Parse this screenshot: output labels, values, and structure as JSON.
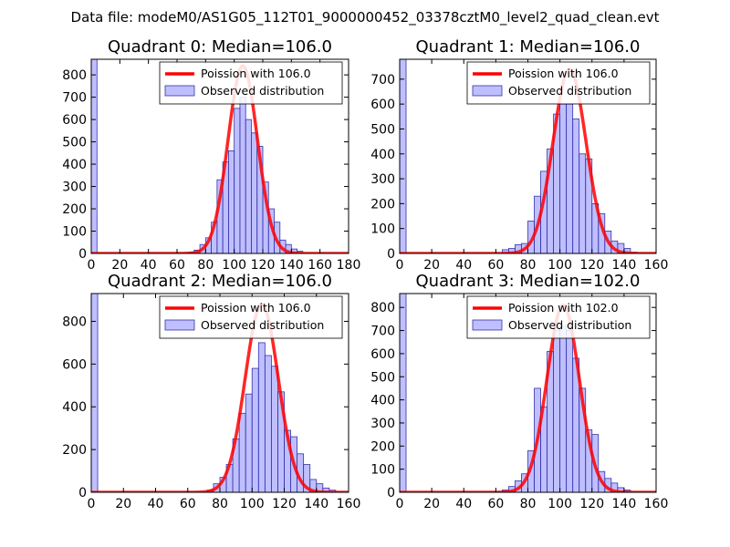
{
  "figure_title": "Data file: modeM0/AS1G05_112T01_9000000452_03378cztM0_level2_quad_clean.evt",
  "colors": {
    "hist_fill": "#7f7fff",
    "hist_edge": "#3333aa",
    "curve": "#ff0000",
    "axes": "#000000"
  },
  "chart_data": [
    {
      "type": "bar",
      "title": "Quadrant 0: Median=106.0",
      "median": 106.0,
      "legend": {
        "curve_label": "Poission with 106.0",
        "hist_label": "Observed distribution",
        "placement": "top-right"
      },
      "xlim": [
        0,
        180
      ],
      "ylim": [
        0,
        870
      ],
      "xticks": [
        0,
        20,
        40,
        60,
        80,
        100,
        120,
        140,
        160,
        180
      ],
      "yticks": [
        0,
        100,
        200,
        300,
        400,
        500,
        600,
        700,
        800
      ],
      "bin_width": 4,
      "bins": [
        {
          "x": 0,
          "count": 870
        },
        {
          "x": 68,
          "count": 5
        },
        {
          "x": 72,
          "count": 15
        },
        {
          "x": 76,
          "count": 40
        },
        {
          "x": 80,
          "count": 70
        },
        {
          "x": 84,
          "count": 140
        },
        {
          "x": 88,
          "count": 330
        },
        {
          "x": 92,
          "count": 410
        },
        {
          "x": 96,
          "count": 460
        },
        {
          "x": 100,
          "count": 650
        },
        {
          "x": 104,
          "count": 700
        },
        {
          "x": 108,
          "count": 600
        },
        {
          "x": 112,
          "count": 540
        },
        {
          "x": 116,
          "count": 480
        },
        {
          "x": 120,
          "count": 320
        },
        {
          "x": 124,
          "count": 200
        },
        {
          "x": 128,
          "count": 140
        },
        {
          "x": 132,
          "count": 60
        },
        {
          "x": 136,
          "count": 40
        },
        {
          "x": 140,
          "count": 20
        },
        {
          "x": 144,
          "count": 10
        }
      ],
      "curve_peak": 840
    },
    {
      "type": "bar",
      "title": "Quadrant 1: Median=106.0",
      "median": 106.0,
      "legend": {
        "curve_label": "Poission with 106.0",
        "hist_label": "Observed distribution",
        "placement": "top-right"
      },
      "xlim": [
        0,
        160
      ],
      "ylim": [
        0,
        780
      ],
      "xticks": [
        0,
        20,
        40,
        60,
        80,
        100,
        120,
        140,
        160
      ],
      "yticks": [
        0,
        100,
        200,
        300,
        400,
        500,
        600,
        700
      ],
      "bin_width": 4,
      "bins": [
        {
          "x": 0,
          "count": 780
        },
        {
          "x": 64,
          "count": 15
        },
        {
          "x": 68,
          "count": 20
        },
        {
          "x": 72,
          "count": 35
        },
        {
          "x": 76,
          "count": 40
        },
        {
          "x": 80,
          "count": 130
        },
        {
          "x": 84,
          "count": 230
        },
        {
          "x": 88,
          "count": 330
        },
        {
          "x": 92,
          "count": 420
        },
        {
          "x": 96,
          "count": 560
        },
        {
          "x": 100,
          "count": 600
        },
        {
          "x": 104,
          "count": 600
        },
        {
          "x": 108,
          "count": 540
        },
        {
          "x": 112,
          "count": 400
        },
        {
          "x": 116,
          "count": 380
        },
        {
          "x": 120,
          "count": 200
        },
        {
          "x": 124,
          "count": 160
        },
        {
          "x": 128,
          "count": 90
        },
        {
          "x": 132,
          "count": 50
        },
        {
          "x": 136,
          "count": 40
        },
        {
          "x": 140,
          "count": 20
        },
        {
          "x": 144,
          "count": 5
        }
      ],
      "curve_peak": 740
    },
    {
      "type": "bar",
      "title": "Quadrant 2: Median=106.0",
      "median": 106.0,
      "legend": {
        "curve_label": "Poission with 106.0",
        "hist_label": "Observed distribution",
        "placement": "top-right"
      },
      "xlim": [
        0,
        160
      ],
      "ylim": [
        0,
        930
      ],
      "xticks": [
        0,
        20,
        40,
        60,
        80,
        100,
        120,
        140,
        160
      ],
      "yticks": [
        0,
        200,
        400,
        600,
        800
      ],
      "bin_width": 4,
      "bins": [
        {
          "x": 0,
          "count": 930
        },
        {
          "x": 72,
          "count": 10
        },
        {
          "x": 76,
          "count": 40
        },
        {
          "x": 80,
          "count": 70
        },
        {
          "x": 84,
          "count": 130
        },
        {
          "x": 88,
          "count": 250
        },
        {
          "x": 92,
          "count": 370
        },
        {
          "x": 96,
          "count": 460
        },
        {
          "x": 100,
          "count": 580
        },
        {
          "x": 104,
          "count": 700
        },
        {
          "x": 108,
          "count": 640
        },
        {
          "x": 112,
          "count": 590
        },
        {
          "x": 116,
          "count": 470
        },
        {
          "x": 120,
          "count": 290
        },
        {
          "x": 124,
          "count": 260
        },
        {
          "x": 128,
          "count": 180
        },
        {
          "x": 132,
          "count": 130
        },
        {
          "x": 136,
          "count": 60
        },
        {
          "x": 140,
          "count": 40
        },
        {
          "x": 144,
          "count": 20
        },
        {
          "x": 148,
          "count": 10
        }
      ],
      "curve_peak": 880
    },
    {
      "type": "bar",
      "title": "Quadrant 3: Median=102.0",
      "median": 102.0,
      "legend": {
        "curve_label": "Poission with 102.0",
        "hist_label": "Observed distribution",
        "placement": "top-right"
      },
      "xlim": [
        0,
        160
      ],
      "ylim": [
        0,
        860
      ],
      "xticks": [
        0,
        20,
        40,
        60,
        80,
        100,
        120,
        140,
        160
      ],
      "yticks": [
        0,
        100,
        200,
        300,
        400,
        500,
        600,
        700,
        800
      ],
      "bin_width": 4,
      "bins": [
        {
          "x": 0,
          "count": 860
        },
        {
          "x": 64,
          "count": 10
        },
        {
          "x": 68,
          "count": 25
        },
        {
          "x": 72,
          "count": 50
        },
        {
          "x": 76,
          "count": 80
        },
        {
          "x": 80,
          "count": 180
        },
        {
          "x": 84,
          "count": 450
        },
        {
          "x": 88,
          "count": 370
        },
        {
          "x": 92,
          "count": 610
        },
        {
          "x": 96,
          "count": 700
        },
        {
          "x": 100,
          "count": 720
        },
        {
          "x": 104,
          "count": 700
        },
        {
          "x": 108,
          "count": 580
        },
        {
          "x": 112,
          "count": 450
        },
        {
          "x": 116,
          "count": 270
        },
        {
          "x": 120,
          "count": 250
        },
        {
          "x": 124,
          "count": 90
        },
        {
          "x": 128,
          "count": 60
        },
        {
          "x": 132,
          "count": 40
        },
        {
          "x": 136,
          "count": 20
        },
        {
          "x": 140,
          "count": 10
        }
      ],
      "curve_peak": 810
    }
  ]
}
